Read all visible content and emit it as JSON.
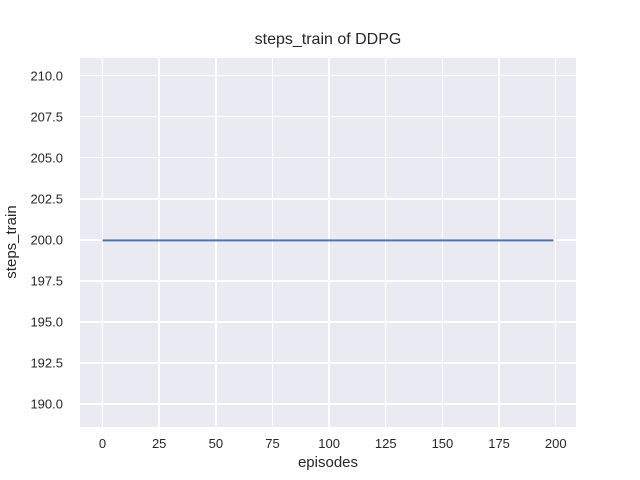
{
  "chart_data": {
    "type": "line",
    "title": "steps_train of DDPG",
    "xlabel": "episodes",
    "ylabel": "steps_train",
    "style": "seaborn-darkgrid",
    "grid": true,
    "legend": false,
    "plot_bg_color": "#eaeaf2",
    "grid_color": "#ffffff",
    "text_color": "#262626",
    "xlim": [
      -9.95,
      208.95
    ],
    "ylim": [
      188.6,
      211.1
    ],
    "x_ticks": [
      0,
      25,
      50,
      75,
      100,
      125,
      150,
      175,
      200
    ],
    "x_tick_labels": [
      "0",
      "25",
      "50",
      "75",
      "100",
      "125",
      "150",
      "175",
      "200"
    ],
    "y_ticks": [
      190.0,
      192.5,
      195.0,
      197.5,
      200.0,
      202.5,
      205.0,
      207.5,
      210.0
    ],
    "y_tick_labels": [
      "190.0",
      "192.5",
      "195.0",
      "197.5",
      "200.0",
      "202.5",
      "205.0",
      "207.5",
      "210.0"
    ],
    "series": [
      {
        "name": "steps_train",
        "color": "#4c72b0",
        "line_width": 2,
        "x": [
          0,
          199
        ],
        "y": [
          200.0,
          200.0
        ]
      }
    ]
  }
}
